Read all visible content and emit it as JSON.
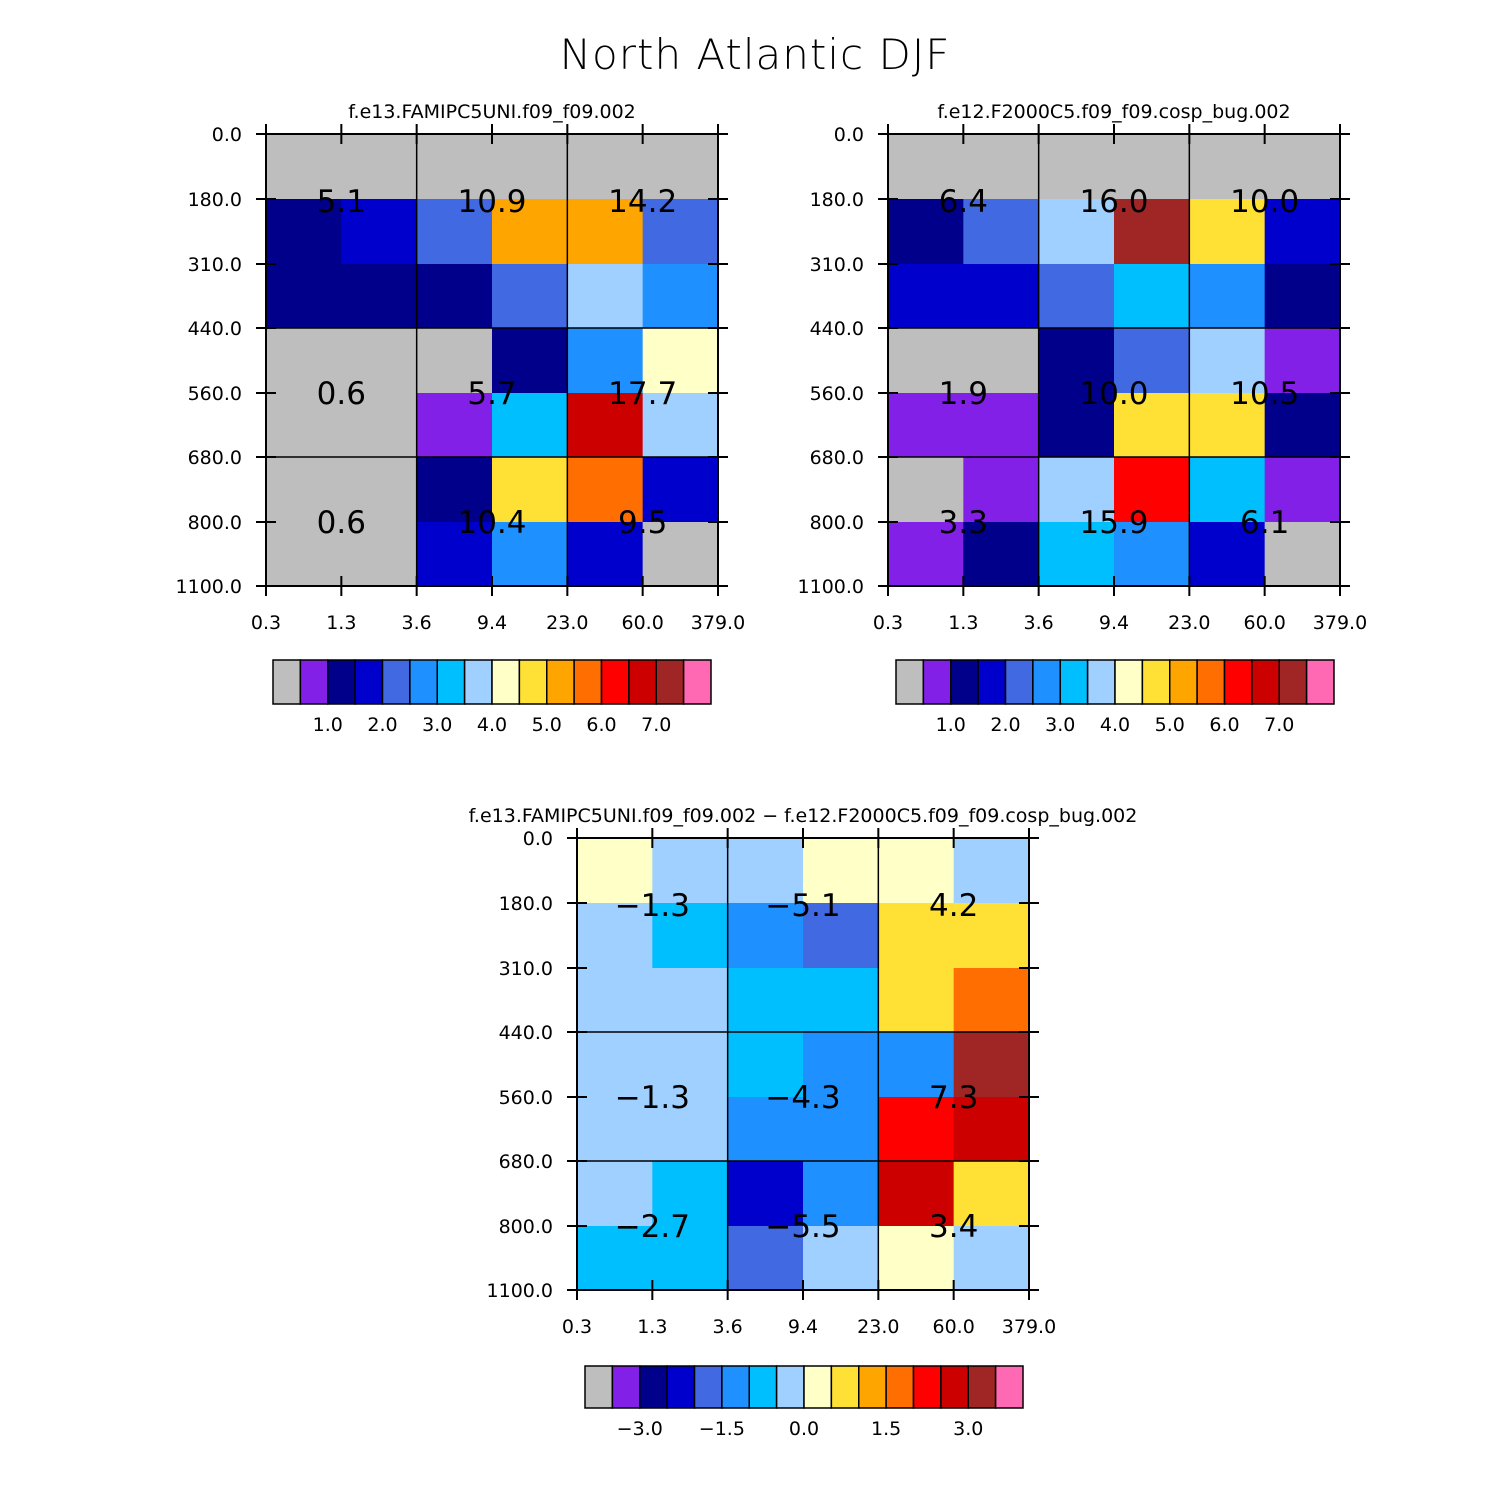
{
  "title": "North Atlantic DJF",
  "x_tick_labels": [
    "0.3",
    "1.3",
    "3.6",
    "9.4",
    "23.0",
    "60.0",
    "379.0"
  ],
  "y_tick_labels": [
    "0.0",
    "180.0",
    "310.0",
    "440.0",
    "560.0",
    "680.0",
    "800.0",
    "1100.0"
  ],
  "chart_data": [
    {
      "type": "heatmap",
      "title": "f.e13.FAMIPC5UNI.f09_f09.002",
      "cells": [
        [
          "missing",
          "missing",
          "missing",
          "missing",
          "missing",
          "missing"
        ],
        [
          "c2",
          "c3",
          "c4",
          "c10",
          "c10",
          "c4"
        ],
        [
          "c2",
          "c2",
          "c2",
          "c4",
          "c7",
          "c5"
        ],
        [
          "missing",
          "missing",
          "missing",
          "c2",
          "c5",
          "c8"
        ],
        [
          "missing",
          "missing",
          "c1",
          "c6",
          "c13",
          "c7"
        ],
        [
          "missing",
          "missing",
          "c2",
          "c9",
          "c11",
          "c3"
        ],
        [
          "missing",
          "missing",
          "c3",
          "c5",
          "c3",
          "missing"
        ]
      ],
      "labels": [
        {
          "col": 0,
          "row": 0,
          "text": "5.1"
        },
        {
          "col": 1,
          "row": 0,
          "text": "10.9"
        },
        {
          "col": 2,
          "row": 0,
          "text": "14.2"
        },
        {
          "col": 0,
          "row": 1,
          "text": "0.6"
        },
        {
          "col": 1,
          "row": 1,
          "text": "5.7"
        },
        {
          "col": 2,
          "row": 1,
          "text": "17.7"
        },
        {
          "col": 0,
          "row": 2,
          "text": "0.6"
        },
        {
          "col": 1,
          "row": 2,
          "text": "10.4"
        },
        {
          "col": 2,
          "row": 2,
          "text": "9.5"
        }
      ],
      "colorbar_labels": [
        "1.0",
        "2.0",
        "3.0",
        "4.0",
        "5.0",
        "6.0",
        "7.0"
      ]
    },
    {
      "type": "heatmap",
      "title": "f.e12.F2000C5.f09_f09.cosp_bug.002",
      "cells": [
        [
          "missing",
          "missing",
          "missing",
          "missing",
          "missing",
          "missing"
        ],
        [
          "c2",
          "c4",
          "c7",
          "c14",
          "c9",
          "c3"
        ],
        [
          "c3",
          "c3",
          "c4",
          "c6",
          "c5",
          "c2"
        ],
        [
          "missing",
          "missing",
          "c2",
          "c4",
          "c7",
          "c1"
        ],
        [
          "c1",
          "c1",
          "c2",
          "c9",
          "c9",
          "c2"
        ],
        [
          "missing",
          "c1",
          "c7",
          "c12",
          "c6",
          "c1"
        ],
        [
          "c1",
          "c2",
          "c6",
          "c5",
          "c3",
          "missing"
        ]
      ],
      "labels": [
        {
          "col": 0,
          "row": 0,
          "text": "6.4"
        },
        {
          "col": 1,
          "row": 0,
          "text": "16.0"
        },
        {
          "col": 2,
          "row": 0,
          "text": "10.0"
        },
        {
          "col": 0,
          "row": 1,
          "text": "1.9"
        },
        {
          "col": 1,
          "row": 1,
          "text": "10.0"
        },
        {
          "col": 2,
          "row": 1,
          "text": "10.5"
        },
        {
          "col": 0,
          "row": 2,
          "text": "3.3"
        },
        {
          "col": 1,
          "row": 2,
          "text": "15.9"
        },
        {
          "col": 2,
          "row": 2,
          "text": "6.1"
        }
      ],
      "colorbar_labels": [
        "1.0",
        "2.0",
        "3.0",
        "4.0",
        "5.0",
        "6.0",
        "7.0"
      ]
    },
    {
      "type": "heatmap",
      "title": "f.e13.FAMIPC5UNI.f09_f09.002 − f.e12.F2000C5.f09_f09.cosp_bug.002",
      "cells": [
        [
          "c8",
          "c7",
          "c7",
          "c8",
          "c8",
          "c7"
        ],
        [
          "c7",
          "c6",
          "c5",
          "c4",
          "c9",
          "c9"
        ],
        [
          "c7",
          "c7",
          "c6",
          "c6",
          "c9",
          "c11"
        ],
        [
          "c7",
          "c7",
          "c6",
          "c5",
          "c5",
          "c14"
        ],
        [
          "c7",
          "c7",
          "c5",
          "c5",
          "c12",
          "c13"
        ],
        [
          "c7",
          "c6",
          "c3",
          "c5",
          "c13",
          "c9"
        ],
        [
          "c6",
          "c6",
          "c4",
          "c7",
          "c8",
          "c7"
        ]
      ],
      "labels": [
        {
          "col": 0,
          "row": 0,
          "text": "−1.3"
        },
        {
          "col": 1,
          "row": 0,
          "text": "−5.1"
        },
        {
          "col": 2,
          "row": 0,
          "text": "4.2"
        },
        {
          "col": 0,
          "row": 1,
          "text": "−1.3"
        },
        {
          "col": 1,
          "row": 1,
          "text": "−4.3"
        },
        {
          "col": 2,
          "row": 1,
          "text": "7.3"
        },
        {
          "col": 0,
          "row": 2,
          "text": "−2.7"
        },
        {
          "col": 1,
          "row": 2,
          "text": "−5.5"
        },
        {
          "col": 2,
          "row": 2,
          "text": "3.4"
        }
      ],
      "colorbar_labels": [
        "−3.0",
        "−1.5",
        "0.0",
        "1.5",
        "3.0"
      ]
    }
  ],
  "palette": {
    "missing": "#bebebe",
    "c1": "#8320e8",
    "c2": "#00008b",
    "c3": "#0000cd",
    "c4": "#4169e1",
    "c5": "#1e90ff",
    "c6": "#00bfff",
    "c7": "#a0d0ff",
    "c8": "#ffffc8",
    "c9": "#ffe135",
    "c10": "#ffa500",
    "c11": "#ff6e00",
    "c12": "#ff0000",
    "c13": "#cd0000",
    "c14": "#a02525",
    "c15": "#ff69b4"
  },
  "colorbar_order": [
    "missing",
    "c1",
    "c2",
    "c3",
    "c4",
    "c5",
    "c6",
    "c7",
    "c8",
    "c9",
    "c10",
    "c11",
    "c12",
    "c13",
    "c14",
    "c15"
  ]
}
